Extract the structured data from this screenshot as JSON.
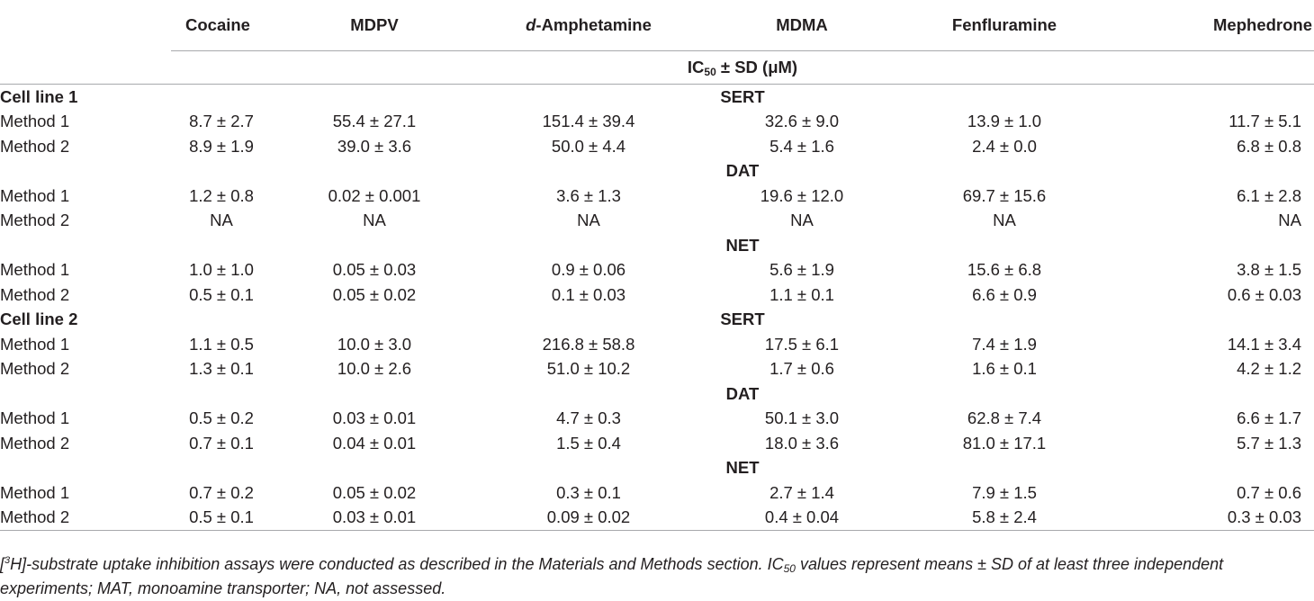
{
  "header": {
    "drugs": [
      {
        "prefix": "",
        "name": "Cocaine"
      },
      {
        "prefix": "",
        "name": "MDPV"
      },
      {
        "prefix": "d",
        "name": "-Amphetamine"
      },
      {
        "prefix": "",
        "name": "MDMA"
      },
      {
        "prefix": "",
        "name": "Fenfluramine"
      },
      {
        "prefix": "",
        "name": "Mephedrone"
      }
    ],
    "unit_main": "IC",
    "unit_sub": "50",
    "unit_rest": " ± SD (μM)"
  },
  "cell_lines": [
    {
      "label": "Cell line 1",
      "sections": [
        {
          "transporter": "SERT",
          "rows": [
            {
              "method": "Method 1",
              "values": [
                "8.7 ± 2.7",
                "55.4 ± 27.1",
                "151.4 ± 39.4",
                "32.6 ± 9.0",
                "13.9 ± 1.0",
                "11.7 ± 5.1"
              ]
            },
            {
              "method": "Method 2",
              "values": [
                "8.9 ± 1.9",
                "39.0 ± 3.6",
                "50.0 ± 4.4",
                "5.4 ± 1.6",
                "2.4 ± 0.0",
                "6.8 ± 0.8"
              ]
            }
          ]
        },
        {
          "transporter": "DAT",
          "rows": [
            {
              "method": "Method 1",
              "values": [
                "1.2 ± 0.8",
                "0.02 ± 0.001",
                "3.6 ± 1.3",
                "19.6 ± 12.0",
                "69.7 ± 15.6",
                "6.1 ± 2.8"
              ]
            },
            {
              "method": "Method 2",
              "values": [
                "NA",
                "NA",
                "NA",
                "NA",
                "NA",
                "NA"
              ]
            }
          ]
        },
        {
          "transporter": "NET",
          "rows": [
            {
              "method": "Method 1",
              "values": [
                "1.0 ± 1.0",
                "0.05 ± 0.03",
                "0.9 ± 0.06",
                "5.6 ± 1.9",
                "15.6 ± 6.8",
                "3.8 ± 1.5"
              ]
            },
            {
              "method": "Method 2",
              "values": [
                "0.5 ± 0.1",
                "0.05 ± 0.02",
                "0.1 ± 0.03",
                "1.1 ± 0.1",
                "6.6 ± 0.9",
                "0.6 ± 0.03"
              ]
            }
          ]
        }
      ]
    },
    {
      "label": "Cell line 2",
      "sections": [
        {
          "transporter": "SERT",
          "rows": [
            {
              "method": "Method 1",
              "values": [
                "1.1 ± 0.5",
                "10.0 ± 3.0",
                "216.8 ± 58.8",
                "17.5 ± 6.1",
                "7.4 ± 1.9",
                "14.1 ± 3.4"
              ]
            },
            {
              "method": "Method 2",
              "values": [
                "1.3 ± 0.1",
                "10.0 ± 2.6",
                "51.0 ± 10.2",
                "1.7 ± 0.6",
                "1.6 ± 0.1",
                "4.2 ± 1.2"
              ]
            }
          ]
        },
        {
          "transporter": "DAT",
          "rows": [
            {
              "method": "Method 1",
              "values": [
                "0.5 ± 0.2",
                "0.03 ± 0.01",
                "4.7 ± 0.3",
                "50.1 ± 3.0",
                "62.8 ± 7.4",
                "6.6 ± 1.7"
              ]
            },
            {
              "method": "Method 2",
              "values": [
                "0.7 ± 0.1",
                "0.04 ± 0.01",
                "1.5 ± 0.4",
                "18.0 ± 3.6",
                "81.0 ± 17.1",
                "5.7 ± 1.3"
              ]
            }
          ]
        },
        {
          "transporter": "NET",
          "rows": [
            {
              "method": "Method 1",
              "values": [
                "0.7 ± 0.2",
                "0.05 ± 0.02",
                "0.3 ± 0.1",
                "2.7 ± 1.4",
                "7.9 ± 1.5",
                "0.7 ± 0.6"
              ]
            },
            {
              "method": "Method 2",
              "values": [
                "0.5 ± 0.1",
                "0.03 ± 0.01",
                "0.09 ± 0.02",
                "0.4 ± 0.04",
                "5.8 ± 2.4",
                "0.3 ± 0.03"
              ]
            }
          ]
        }
      ]
    }
  ],
  "footnote": {
    "bracket_open": "[",
    "superscript": "3",
    "text": "H]-substrate uptake inhibition assays were conducted as described in the Materials and Methods section. IC",
    "ic_sub": "50",
    "text2": " values represent means ± SD of at least three independent experiments; MAT, monoamine transporter; NA, not assessed."
  }
}
